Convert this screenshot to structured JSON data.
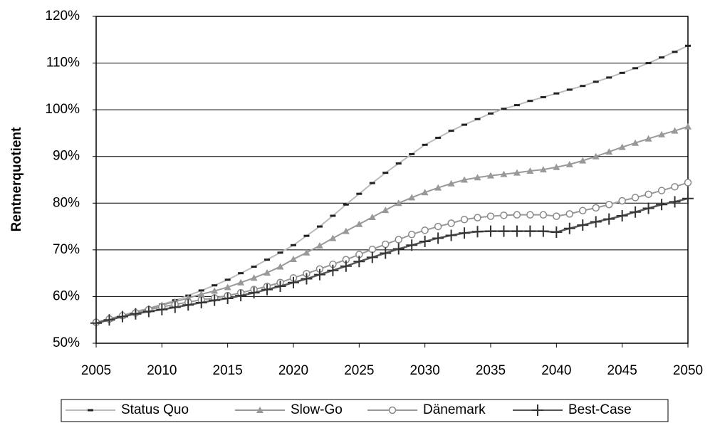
{
  "chart_data": {
    "type": "line",
    "y_label": "Rentnerquotient",
    "x": [
      2005,
      2006,
      2007,
      2008,
      2009,
      2010,
      2011,
      2012,
      2013,
      2014,
      2015,
      2016,
      2017,
      2018,
      2019,
      2020,
      2021,
      2022,
      2023,
      2024,
      2025,
      2026,
      2027,
      2028,
      2029,
      2030,
      2031,
      2032,
      2033,
      2034,
      2035,
      2036,
      2037,
      2038,
      2039,
      2040,
      2041,
      2042,
      2043,
      2044,
      2045,
      2046,
      2047,
      2048,
      2049,
      2050
    ],
    "xlim": [
      2005,
      2050
    ],
    "xticks": [
      2005,
      2010,
      2015,
      2020,
      2025,
      2030,
      2035,
      2040,
      2045,
      2050
    ],
    "ylim": [
      50,
      120
    ],
    "yticks": [
      {
        "value": 50,
        "label": "50%"
      },
      {
        "value": 60,
        "label": "60%"
      },
      {
        "value": 70,
        "label": "70%"
      },
      {
        "value": 80,
        "label": "80%"
      },
      {
        "value": 90,
        "label": "90%"
      },
      {
        "value": 100,
        "label": "100%"
      },
      {
        "value": 110,
        "label": "110%"
      },
      {
        "value": 120,
        "label": "120%"
      }
    ],
    "grid": true,
    "legend": "bottom",
    "series": [
      {
        "name": "Status Quo",
        "color": "#bbbbbb",
        "marker": "dash",
        "marker_color": "#222222",
        "values": [
          54.5,
          55.2,
          56,
          56.8,
          57.5,
          58.3,
          59.2,
          60.2,
          61.3,
          62.4,
          63.6,
          65,
          66.4,
          67.9,
          69.4,
          71,
          73,
          75,
          77.3,
          79.7,
          82,
          84.3,
          86.5,
          88.5,
          90.5,
          92.5,
          94,
          95.5,
          96.8,
          98,
          99.2,
          100.2,
          101,
          101.9,
          102.7,
          103.5,
          104.3,
          105.1,
          106,
          106.9,
          107.9,
          108.9,
          110,
          111.2,
          112.4,
          113.7
        ]
      },
      {
        "name": "Slow-Go",
        "color": "#999999",
        "marker": "triangle",
        "marker_color": "#999999",
        "values": [
          54.5,
          55.2,
          55.9,
          56.6,
          57.4,
          58.2,
          58.9,
          59.7,
          60.5,
          61.2,
          62,
          63,
          64,
          65.1,
          66.4,
          68,
          69.4,
          70.9,
          72.5,
          74,
          75.5,
          77,
          78.5,
          80,
          81.2,
          82.3,
          83.3,
          84.2,
          85,
          85.5,
          85.9,
          86.2,
          86.5,
          86.9,
          87.2,
          87.7,
          88.3,
          89.1,
          90,
          91,
          92,
          92.9,
          93.8,
          94.7,
          95.5,
          96.4
        ]
      },
      {
        "name": "Dänemark",
        "color": "#999999",
        "marker": "circle",
        "marker_color": "#888888",
        "values": [
          54.5,
          55.2,
          55.9,
          56.5,
          57.2,
          57.8,
          58.3,
          58.8,
          59.3,
          59.7,
          60.2,
          60.8,
          61.5,
          62.2,
          63,
          64,
          64.9,
          65.9,
          66.9,
          67.9,
          69,
          70.1,
          71.2,
          72.2,
          73.3,
          74.2,
          75,
          75.7,
          76.5,
          76.9,
          77.2,
          77.4,
          77.5,
          77.5,
          77.5,
          77.2,
          77.7,
          78.4,
          79,
          79.7,
          80.5,
          81.2,
          81.9,
          82.7,
          83.5,
          84.4
        ]
      },
      {
        "name": "Best-Case",
        "color": "#555555",
        "marker": "plus",
        "marker_color": "#333333",
        "values": [
          54.3,
          55,
          55.7,
          56.3,
          56.8,
          57.2,
          57.7,
          58.2,
          58.7,
          59.2,
          59.6,
          60.2,
          60.8,
          61.5,
          62.2,
          63,
          63.8,
          64.7,
          65.6,
          66.5,
          67.5,
          68.4,
          69.3,
          70.2,
          71,
          71.8,
          72.5,
          73.1,
          73.6,
          73.9,
          74,
          74,
          74,
          74,
          74,
          73.8,
          74.6,
          75.3,
          76,
          76.6,
          77.3,
          78.1,
          78.9,
          79.7,
          80.3,
          81
        ]
      }
    ]
  }
}
